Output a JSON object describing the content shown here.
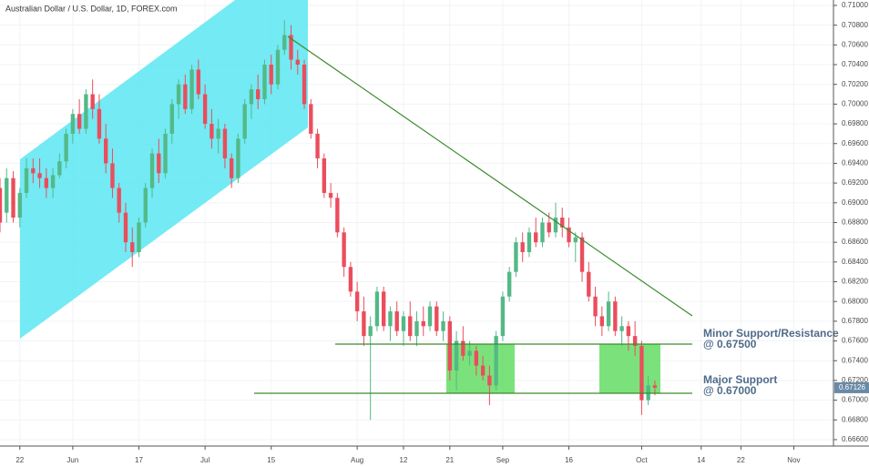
{
  "chart_data": {
    "type": "candlestick",
    "title": "Australian Dollar / U.S. Dollar, 1D, FOREX.com",
    "up_color": "#53b987",
    "down_color": "#eb4d5c",
    "x": [
      -3,
      -2,
      -1,
      0,
      1,
      2,
      3,
      4,
      5,
      6,
      7,
      8,
      9,
      10,
      11,
      12,
      13,
      14,
      15,
      16,
      17,
      18,
      19,
      20,
      21,
      22,
      23,
      24,
      25,
      26,
      27,
      28,
      29,
      30,
      31,
      32,
      33,
      34,
      35,
      36,
      37,
      38,
      39,
      40,
      41,
      42,
      43,
      44,
      45,
      46,
      47,
      48,
      49,
      50,
      51,
      52,
      53,
      54,
      55,
      56,
      57,
      58,
      59,
      60,
      61,
      62,
      63,
      64,
      65,
      66,
      67,
      68,
      69,
      70,
      71,
      72,
      73,
      74,
      75,
      76,
      77,
      78,
      79,
      80,
      81,
      82,
      83,
      84,
      85,
      86,
      87,
      88,
      89,
      90,
      91,
      92,
      93,
      94,
      95,
      96
    ],
    "open": [
      0.6915,
      0.689,
      0.6925,
      0.6885,
      0.691,
      0.6935,
      0.693,
      0.6925,
      0.6915,
      0.6928,
      0.6942,
      0.697,
      0.699,
      0.6975,
      0.701,
      0.6995,
      0.6965,
      0.694,
      0.6915,
      0.689,
      0.686,
      0.685,
      0.688,
      0.6915,
      0.695,
      0.693,
      0.697,
      0.7,
      0.702,
      0.6995,
      0.7035,
      0.701,
      0.698,
      0.6965,
      0.6975,
      0.6945,
      0.6925,
      0.6965,
      0.7,
      0.7015,
      0.7005,
      0.704,
      0.702,
      0.7055,
      0.707,
      0.7045,
      0.704,
      0.7,
      0.697,
      0.6945,
      0.691,
      0.6905,
      0.687,
      0.6835,
      0.681,
      0.679,
      0.6765,
      0.6775,
      0.681,
      0.6775,
      0.679,
      0.677,
      0.6785,
      0.6765,
      0.678,
      0.6775,
      0.6795,
      0.677,
      0.678,
      0.673,
      0.676,
      0.6745,
      0.675,
      0.6735,
      0.6725,
      0.6715,
      0.6765,
      0.6805,
      0.683,
      0.686,
      0.685,
      0.687,
      0.686,
      0.688,
      0.687,
      0.6885,
      0.6875,
      0.686,
      0.6865,
      0.683,
      0.6805,
      0.6785,
      0.6775,
      0.68,
      0.677,
      0.6775,
      0.6765,
      0.6755,
      0.67,
      0.6715
    ],
    "high": [
      0.6925,
      0.6935,
      0.6932,
      0.6915,
      0.6945,
      0.6945,
      0.6945,
      0.6935,
      0.6935,
      0.695,
      0.6975,
      0.6995,
      0.7005,
      0.7015,
      0.7025,
      0.701,
      0.698,
      0.6955,
      0.692,
      0.69,
      0.6875,
      0.6885,
      0.692,
      0.6955,
      0.6965,
      0.6975,
      0.7005,
      0.7025,
      0.703,
      0.704,
      0.7045,
      0.702,
      0.6995,
      0.6985,
      0.698,
      0.695,
      0.697,
      0.7005,
      0.702,
      0.703,
      0.7045,
      0.705,
      0.706,
      0.7085,
      0.708,
      0.7055,
      0.7045,
      0.7005,
      0.6975,
      0.695,
      0.692,
      0.691,
      0.6875,
      0.684,
      0.682,
      0.6805,
      0.6785,
      0.6815,
      0.6815,
      0.6795,
      0.68,
      0.679,
      0.68,
      0.679,
      0.6795,
      0.68,
      0.68,
      0.679,
      0.6785,
      0.677,
      0.6775,
      0.676,
      0.6755,
      0.6745,
      0.6735,
      0.677,
      0.681,
      0.6835,
      0.6865,
      0.687,
      0.6875,
      0.6885,
      0.6885,
      0.689,
      0.69,
      0.6895,
      0.6885,
      0.687,
      0.687,
      0.684,
      0.6815,
      0.6795,
      0.681,
      0.6805,
      0.6785,
      0.678,
      0.678,
      0.676,
      0.6725,
      0.672
    ],
    "low": [
      0.687,
      0.688,
      0.688,
      0.6875,
      0.6905,
      0.692,
      0.6915,
      0.6905,
      0.6905,
      0.6925,
      0.6935,
      0.696,
      0.697,
      0.697,
      0.6985,
      0.696,
      0.693,
      0.6905,
      0.688,
      0.685,
      0.6835,
      0.6845,
      0.6875,
      0.6905,
      0.692,
      0.6925,
      0.696,
      0.6985,
      0.699,
      0.699,
      0.7005,
      0.6975,
      0.6955,
      0.695,
      0.6935,
      0.6915,
      0.692,
      0.696,
      0.6985,
      0.6995,
      0.7,
      0.701,
      0.7015,
      0.705,
      0.7035,
      0.703,
      0.6995,
      0.6965,
      0.6935,
      0.6905,
      0.6895,
      0.6865,
      0.6825,
      0.6805,
      0.678,
      0.6755,
      0.668,
      0.677,
      0.677,
      0.676,
      0.6765,
      0.6755,
      0.676,
      0.6755,
      0.6765,
      0.677,
      0.6765,
      0.676,
      0.672,
      0.671,
      0.674,
      0.6735,
      0.6725,
      0.672,
      0.6695,
      0.671,
      0.676,
      0.68,
      0.6825,
      0.684,
      0.6845,
      0.6855,
      0.6855,
      0.6865,
      0.6865,
      0.6865,
      0.6855,
      0.684,
      0.682,
      0.68,
      0.6775,
      0.6765,
      0.677,
      0.6765,
      0.6755,
      0.675,
      0.6745,
      0.6685,
      0.6695,
      0.6705
    ],
    "close": [
      0.688,
      0.6925,
      0.6885,
      0.691,
      0.6935,
      0.693,
      0.6925,
      0.6915,
      0.6928,
      0.6942,
      0.697,
      0.699,
      0.6975,
      0.701,
      0.6995,
      0.6965,
      0.694,
      0.6915,
      0.689,
      0.686,
      0.685,
      0.688,
      0.6915,
      0.695,
      0.693,
      0.697,
      0.7,
      0.702,
      0.6995,
      0.7035,
      0.701,
      0.698,
      0.6965,
      0.6975,
      0.6945,
      0.6925,
      0.6965,
      0.7,
      0.7015,
      0.7005,
      0.704,
      0.702,
      0.7055,
      0.707,
      0.7045,
      0.704,
      0.7,
      0.697,
      0.6945,
      0.691,
      0.6905,
      0.687,
      0.6835,
      0.681,
      0.679,
      0.6765,
      0.6775,
      0.681,
      0.6775,
      0.679,
      0.677,
      0.6785,
      0.6765,
      0.678,
      0.6775,
      0.6795,
      0.677,
      0.678,
      0.673,
      0.676,
      0.6745,
      0.675,
      0.6735,
      0.6725,
      0.6715,
      0.6765,
      0.6805,
      0.683,
      0.686,
      0.685,
      0.687,
      0.686,
      0.688,
      0.687,
      0.6885,
      0.6875,
      0.686,
      0.6865,
      0.683,
      0.6805,
      0.6785,
      0.6775,
      0.68,
      0.677,
      0.6775,
      0.6765,
      0.6755,
      0.67,
      0.6715,
      0.67126
    ],
    "last_price": 0.67126,
    "xlim": [
      -3,
      123
    ],
    "xticks": [
      {
        "value": 0,
        "label": "22"
      },
      {
        "value": 8,
        "label": "Jun"
      },
      {
        "value": 18,
        "label": "17"
      },
      {
        "value": 28,
        "label": "Jul"
      },
      {
        "value": 38,
        "label": "15"
      },
      {
        "value": 51,
        "label": "Aug"
      },
      {
        "value": 58,
        "label": "12"
      },
      {
        "value": 65,
        "label": "21"
      },
      {
        "value": 73,
        "label": "Sep"
      },
      {
        "value": 83,
        "label": "16"
      },
      {
        "value": 94,
        "label": "Oct"
      },
      {
        "value": 103,
        "label": "14"
      },
      {
        "value": 109,
        "label": "22"
      },
      {
        "value": 117,
        "label": "Nov"
      }
    ],
    "ylim": [
      0.66535,
      0.71055
    ],
    "yticks": [
      {
        "value": 0.666,
        "label": "0.66600"
      },
      {
        "value": 0.668,
        "label": "0.66800"
      },
      {
        "value": 0.67,
        "label": "0.67000"
      },
      {
        "value": 0.672,
        "label": "0.67200"
      },
      {
        "value": 0.674,
        "label": "0.67400"
      },
      {
        "value": 0.676,
        "label": "0.67600"
      },
      {
        "value": 0.678,
        "label": "0.67800"
      },
      {
        "value": 0.68,
        "label": "0.68000"
      },
      {
        "value": 0.682,
        "label": "0.68200"
      },
      {
        "value": 0.684,
        "label": "0.68400"
      },
      {
        "value": 0.686,
        "label": "0.68600"
      },
      {
        "value": 0.688,
        "label": "0.68800"
      },
      {
        "value": 0.69,
        "label": "0.69000"
      },
      {
        "value": 0.692,
        "label": "0.69200"
      },
      {
        "value": 0.694,
        "label": "0.69400"
      },
      {
        "value": 0.696,
        "label": "0.69600"
      },
      {
        "value": 0.698,
        "label": "0.69800"
      },
      {
        "value": 0.7,
        "label": "0.70000"
      },
      {
        "value": 0.702,
        "label": "0.70200"
      },
      {
        "value": 0.704,
        "label": "0.70400"
      },
      {
        "value": 0.706,
        "label": "0.70600"
      },
      {
        "value": 0.708,
        "label": "0.70800"
      },
      {
        "value": 0.71,
        "label": "0.71000"
      }
    ],
    "annotations": [
      "Minor Support/Resistance",
      "@ 0.67500",
      "Major Support",
      "@ 0.67000"
    ]
  }
}
